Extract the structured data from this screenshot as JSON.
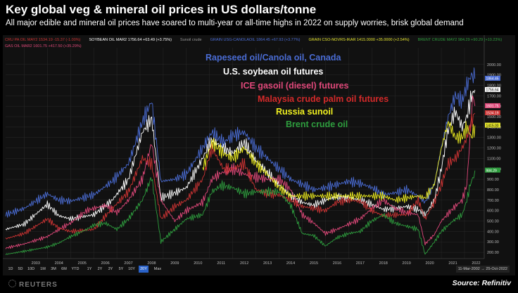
{
  "header": {
    "title": "Key global veg & mineral oil prices in US dollars/tonne",
    "subtitle": "All major edible and mineral oil prices have soared to multi-year or all-time highs in 2022 on supply worries, brisk global demand"
  },
  "legend_row1": [
    {
      "text": "CRU PA OIL MAY2  1534.19 -15.37 (-1.00%)",
      "color": "#cc3333"
    },
    {
      "text": "SOYBEAN OIL MAR2  1756.64 +63.49 (+3.75%)",
      "color": "#ffffff"
    },
    {
      "text": "Sunoil crude",
      "color": "#999999"
    },
    {
      "text": "GRAIN USG-CANOLAOIL  1864.45 +67.93 (+3.77%)",
      "color": "#4a6cd4"
    },
    {
      "text": "GRAIN CSO-NOVRS-IKAR  1415.0000 +35.0000 (+2.54%)",
      "color": "#e6e62e"
    },
    {
      "text": "BRENT CRUDE MAY2  984.29 +90.29 (+10.23%)",
      "color": "#2e9e3e"
    }
  ],
  "legend_row2": [
    {
      "text": "GAS OIL MAR2  1601.75 +417.50 (+35.29%)",
      "color": "#e04a7a"
    }
  ],
  "annotations": [
    {
      "text": "Rapeseed oil/Canola oil, Canada",
      "color": "#4a6cd4"
    },
    {
      "text": "U.S. soybean oil futures",
      "color": "#ffffff"
    },
    {
      "text": "ICE gasoil (diesel) futures",
      "color": "#e0487a"
    },
    {
      "text": "Malaysia crude palm oil futures",
      "color": "#d42a2a"
    },
    {
      "text": "Russia sunoil",
      "color": "#f0f020"
    },
    {
      "text": "Brent crude oil",
      "color": "#2e9e3e"
    }
  ],
  "range_buttons": [
    "1D",
    "5D",
    "10D",
    "1M",
    "3M",
    "6M",
    "YTD",
    "1Y",
    "2Y",
    "3Y",
    "5Y",
    "10Y",
    "20Y",
    "Max"
  ],
  "active_range": "20Y",
  "date_range": "11-Mar-2002 → 25-Oct-2022",
  "brand": "REUTERS",
  "source": "Source: Refinitiv",
  "chart_data": {
    "type": "line",
    "title": "Key global veg & mineral oil prices in US dollars/tonne",
    "ylabel": "",
    "xlabel": "",
    "y_ticks": [
      200,
      300,
      400,
      500,
      600,
      700,
      800,
      900,
      1000,
      1100,
      1200,
      1300,
      1400,
      1500,
      1600,
      1700,
      1800,
      1900,
      2000
    ],
    "y_tick_labels": [
      "200.00",
      "300.00",
      "400.00",
      "500.00",
      "600.00",
      "700.00",
      "800.00",
      "900.00",
      "1000.00",
      "1100.00",
      "1200.00",
      "1300.00",
      "1400.00",
      "1500.00",
      "1600.00",
      "1700.00",
      "1800.00",
      "1900.00",
      "2000.00"
    ],
    "ylim": [
      140,
      2160
    ],
    "xlim": [
      2002.2,
      2022.85
    ],
    "x_ticks": [
      2003,
      2004,
      2005,
      2006,
      2007,
      2008,
      2009,
      2010,
      2011,
      2012,
      2013,
      2014,
      2015,
      2016,
      2017,
      2018,
      2019,
      2020,
      2021,
      2022
    ],
    "last_value_labels": [
      {
        "value": "1864.45",
        "color": "#4a6cd4",
        "y": 1864.45
      },
      {
        "value": "1756.64",
        "color": "#ffffff",
        "y": 1756.64
      },
      {
        "value": "1601.75",
        "color": "#e04a7a",
        "y": 1601.75
      },
      {
        "value": "1534.19",
        "color": "#cc3333",
        "y": 1534.19
      },
      {
        "value": "1415.00",
        "color": "#e6e62e",
        "y": 1415.0
      },
      {
        "value": "984.29",
        "color": "#2e9e3e",
        "y": 984.29
      }
    ],
    "series": [
      {
        "name": "Rapeseed oil/Canola oil, Canada",
        "color": "#4a6cd4",
        "x": [
          2002.2,
          2003,
          2004,
          2004.5,
          2005,
          2006,
          2006.8,
          2007.5,
          2008.1,
          2008.5,
          2008.9,
          2009.5,
          2010,
          2010.7,
          2011.1,
          2011.6,
          2012,
          2012.5,
          2013,
          2013.5,
          2014,
          2014.5,
          2015,
          2015.5,
          2016,
          2016.5,
          2017,
          2017.5,
          2018,
          2018.5,
          2019,
          2019.5,
          2020,
          2020.3,
          2020.7,
          2021,
          2021.3,
          2021.6,
          2021.9,
          2022.1,
          2022.3,
          2022.45
        ],
        "y": [
          560,
          620,
          760,
          700,
          690,
          750,
          880,
          1050,
          1450,
          1650,
          880,
          900,
          950,
          1200,
          1350,
          1250,
          1320,
          1350,
          1200,
          1100,
          1000,
          900,
          850,
          800,
          820,
          850,
          880,
          860,
          820,
          750,
          770,
          800,
          740,
          680,
          860,
          1200,
          1500,
          1700,
          1650,
          1800,
          1900,
          1864
        ]
      },
      {
        "name": "U.S. soybean oil futures",
        "color": "#ffffff",
        "x": [
          2002.2,
          2003,
          2004,
          2004.5,
          2005,
          2006,
          2006.8,
          2007.5,
          2008.1,
          2008.5,
          2008.9,
          2009.5,
          2010,
          2010.7,
          2011.1,
          2011.6,
          2012,
          2012.5,
          2013,
          2013.5,
          2014,
          2014.5,
          2015,
          2015.5,
          2016,
          2016.5,
          2017,
          2017.5,
          2018,
          2018.5,
          2019,
          2019.5,
          2020,
          2020.3,
          2020.7,
          2021,
          2021.3,
          2021.6,
          2021.9,
          2022.1,
          2022.3,
          2022.45
        ],
        "y": [
          420,
          470,
          660,
          550,
          520,
          560,
          700,
          900,
          1350,
          1480,
          720,
          770,
          820,
          1100,
          1280,
          1200,
          1150,
          1250,
          1080,
          960,
          850,
          740,
          680,
          650,
          700,
          730,
          720,
          700,
          660,
          610,
          620,
          640,
          610,
          560,
          700,
          1000,
          1380,
          1550,
          1400,
          1500,
          1700,
          1757
        ]
      },
      {
        "name": "ICE gasoil (diesel) futures",
        "color": "#e0487a",
        "x": [
          2002.2,
          2003,
          2004,
          2004.5,
          2005,
          2005.7,
          2006,
          2006.5,
          2007,
          2007.5,
          2008.1,
          2008.5,
          2008.9,
          2009.5,
          2010,
          2010.7,
          2011.1,
          2011.5,
          2012,
          2012.5,
          2013,
          2013.5,
          2014,
          2014.5,
          2015,
          2015.5,
          2016,
          2016.5,
          2017,
          2017.5,
          2018,
          2018.5,
          2019,
          2019.5,
          2020,
          2020.3,
          2020.7,
          2021,
          2021.5,
          2021.9,
          2022.1,
          2022.25,
          2022.35,
          2022.45
        ],
        "y": [
          240,
          280,
          350,
          420,
          480,
          600,
          620,
          650,
          580,
          700,
          900,
          1250,
          700,
          500,
          600,
          680,
          900,
          960,
          1000,
          950,
          920,
          900,
          900,
          800,
          560,
          480,
          380,
          420,
          470,
          520,
          620,
          700,
          620,
          580,
          560,
          280,
          370,
          500,
          620,
          700,
          850,
          1350,
          1700,
          1602
        ]
      },
      {
        "name": "Malaysia crude palm oil futures",
        "color": "#cc3333",
        "x": [
          2002.2,
          2003,
          2004,
          2004.5,
          2005,
          2006,
          2006.8,
          2007.5,
          2008.1,
          2008.5,
          2008.9,
          2009.5,
          2010,
          2010.7,
          2011.1,
          2011.6,
          2012,
          2012.5,
          2013,
          2013.5,
          2014,
          2014.5,
          2015,
          2015.5,
          2016,
          2016.5,
          2017,
          2017.5,
          2018,
          2018.5,
          2019,
          2019.5,
          2020,
          2020.3,
          2020.7,
          2021,
          2021.3,
          2021.6,
          2021.9,
          2022.1,
          2022.3,
          2022.45
        ],
        "y": [
          330,
          380,
          520,
          430,
          400,
          420,
          620,
          780,
          1100,
          1050,
          520,
          640,
          700,
          900,
          1200,
          1000,
          1000,
          1050,
          800,
          760,
          750,
          700,
          640,
          620,
          600,
          680,
          700,
          690,
          600,
          550,
          560,
          560,
          700,
          520,
          680,
          850,
          1050,
          1100,
          1200,
          1300,
          1450,
          1534
        ]
      },
      {
        "name": "Russia sunoil",
        "color": "#f0f020",
        "x": [
          2010.7,
          2011.1,
          2011.6,
          2012,
          2012.5,
          2013,
          2013.5,
          2014,
          2014.5,
          2015,
          2015.5,
          2016,
          2016.5,
          2017,
          2017.5,
          2018,
          2018.5,
          2019,
          2019.5,
          2020,
          2020.3,
          2020.7,
          2021,
          2021.3,
          2021.6,
          2021.9,
          2022.1,
          2022.3,
          2022.45
        ],
        "y": [
          1000,
          1250,
          1150,
          1100,
          1200,
          1050,
          950,
          820,
          740,
          740,
          740,
          740,
          740,
          740,
          740,
          740,
          740,
          700,
          720,
          740,
          720,
          850,
          1200,
          1450,
          1300,
          1300,
          1400,
          1300,
          1415
        ]
      },
      {
        "name": "Brent crude oil",
        "color": "#2e9e3e",
        "x": [
          2002.2,
          2003,
          2004,
          2004.5,
          2005,
          2005.7,
          2006,
          2006.5,
          2007,
          2007.5,
          2008.1,
          2008.5,
          2008.9,
          2009.5,
          2010,
          2010.7,
          2011.1,
          2011.5,
          2012,
          2012.5,
          2013,
          2013.5,
          2014,
          2014.5,
          2015,
          2015.5,
          2016,
          2016.5,
          2017,
          2017.5,
          2018,
          2018.5,
          2019,
          2019.5,
          2020,
          2020.3,
          2020.7,
          2021,
          2021.5,
          2021.9,
          2022.1,
          2022.25,
          2022.35,
          2022.45
        ],
        "y": [
          180,
          210,
          250,
          290,
          350,
          420,
          460,
          480,
          420,
          520,
          700,
          920,
          300,
          420,
          520,
          560,
          780,
          840,
          820,
          760,
          780,
          780,
          780,
          650,
          380,
          360,
          260,
          340,
          380,
          400,
          500,
          560,
          480,
          450,
          420,
          180,
          300,
          400,
          500,
          560,
          700,
          850,
          900,
          984
        ]
      }
    ]
  }
}
